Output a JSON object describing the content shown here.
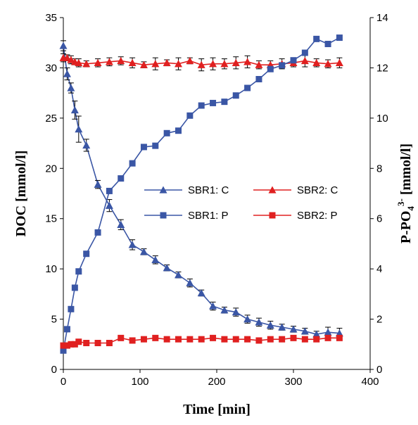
{
  "chart_data": {
    "type": "line",
    "xlabel": "Time [min]",
    "ylabel_left": "DOC [mmol/l]",
    "ylabel_right": {
      "base": "P-PO",
      "sub": "4",
      "sup": "3-",
      "unit": " [mmol/l]"
    },
    "xlim": [
      0,
      400
    ],
    "ylim_left": [
      0,
      35
    ],
    "ylim_right": [
      0,
      14
    ],
    "xticks": [
      "0",
      "100",
      "200",
      "300",
      "400"
    ],
    "yticks_left": [
      "0",
      "5",
      "10",
      "15",
      "20",
      "25",
      "30",
      "35"
    ],
    "yticks_right": [
      "0",
      "2",
      "4",
      "6",
      "8",
      "10",
      "12",
      "14"
    ],
    "legend_position": "center-right",
    "grid": false,
    "series": [
      {
        "name": "SBR1: C",
        "axis": "left",
        "color": "#3a56a5",
        "marker": "triangle",
        "x": [
          0,
          5,
          10,
          15,
          20,
          30,
          45,
          60,
          75,
          90,
          105,
          120,
          135,
          150,
          165,
          180,
          195,
          210,
          225,
          240,
          255,
          270,
          285,
          300,
          315,
          330,
          345,
          360
        ],
        "y": [
          32.2,
          29.4,
          28.0,
          25.8,
          23.9,
          22.3,
          18.4,
          16.3,
          14.4,
          12.4,
          11.7,
          10.9,
          10.1,
          9.4,
          8.6,
          7.6,
          6.3,
          5.9,
          5.7,
          5.0,
          4.7,
          4.4,
          4.2,
          4.0,
          3.8,
          3.5,
          3.7,
          3.6
        ],
        "err": [
          0.5,
          0.6,
          0.5,
          0.9,
          1.3,
          0.6,
          0.4,
          0.6,
          0.5,
          0.5,
          0.3,
          0.4,
          0.3,
          0.3,
          0.4,
          0.3,
          0.4,
          0.3,
          0.4,
          0.4,
          0.4,
          0.4,
          0.3,
          0.3,
          0.3,
          0.3,
          0.5,
          0.5
        ]
      },
      {
        "name": "SBR2: C",
        "axis": "left",
        "color": "#e02020",
        "marker": "triangle",
        "x": [
          0,
          5,
          10,
          15,
          20,
          30,
          45,
          60,
          75,
          90,
          105,
          120,
          135,
          150,
          165,
          180,
          195,
          210,
          225,
          240,
          255,
          270,
          285,
          300,
          315,
          330,
          345,
          360
        ],
        "y": [
          31.0,
          31.0,
          30.8,
          30.6,
          30.5,
          30.4,
          30.5,
          30.6,
          30.7,
          30.5,
          30.3,
          30.4,
          30.5,
          30.4,
          30.7,
          30.3,
          30.4,
          30.4,
          30.5,
          30.6,
          30.3,
          30.3,
          30.4,
          30.5,
          30.7,
          30.5,
          30.4,
          30.5
        ],
        "err": [
          0.4,
          0.3,
          0.4,
          0.3,
          0.4,
          0.3,
          0.4,
          0.4,
          0.4,
          0.5,
          0.3,
          0.6,
          0.3,
          0.6,
          0.3,
          0.6,
          0.6,
          0.5,
          0.6,
          0.6,
          0.4,
          0.4,
          0.5,
          0.4,
          0.6,
          0.4,
          0.4,
          0.5
        ]
      },
      {
        "name": "SBR1: P",
        "axis": "right",
        "color": "#3a56a5",
        "marker": "square",
        "x": [
          0,
          5,
          10,
          15,
          20,
          30,
          45,
          60,
          75,
          90,
          105,
          120,
          135,
          150,
          165,
          180,
          195,
          210,
          225,
          240,
          255,
          270,
          285,
          300,
          315,
          330,
          345,
          360
        ],
        "y": [
          0.75,
          1.6,
          2.4,
          3.25,
          3.9,
          4.6,
          5.45,
          7.1,
          7.6,
          8.2,
          8.85,
          8.9,
          9.4,
          9.5,
          10.1,
          10.5,
          10.6,
          10.65,
          10.9,
          11.2,
          11.55,
          11.95,
          12.1,
          12.3,
          12.6,
          13.15,
          12.95,
          13.2
        ]
      },
      {
        "name": "SBR2: P",
        "axis": "right",
        "color": "#e02020",
        "marker": "square",
        "x": [
          0,
          5,
          10,
          15,
          20,
          30,
          45,
          60,
          75,
          90,
          105,
          120,
          135,
          150,
          165,
          180,
          195,
          210,
          225,
          240,
          255,
          270,
          285,
          300,
          315,
          330,
          345,
          360
        ],
        "y": [
          0.95,
          0.95,
          1.0,
          1.0,
          1.1,
          1.05,
          1.05,
          1.05,
          1.25,
          1.15,
          1.2,
          1.25,
          1.2,
          1.2,
          1.2,
          1.2,
          1.25,
          1.2,
          1.2,
          1.2,
          1.15,
          1.2,
          1.2,
          1.25,
          1.2,
          1.2,
          1.25,
          1.25
        ]
      }
    ]
  }
}
